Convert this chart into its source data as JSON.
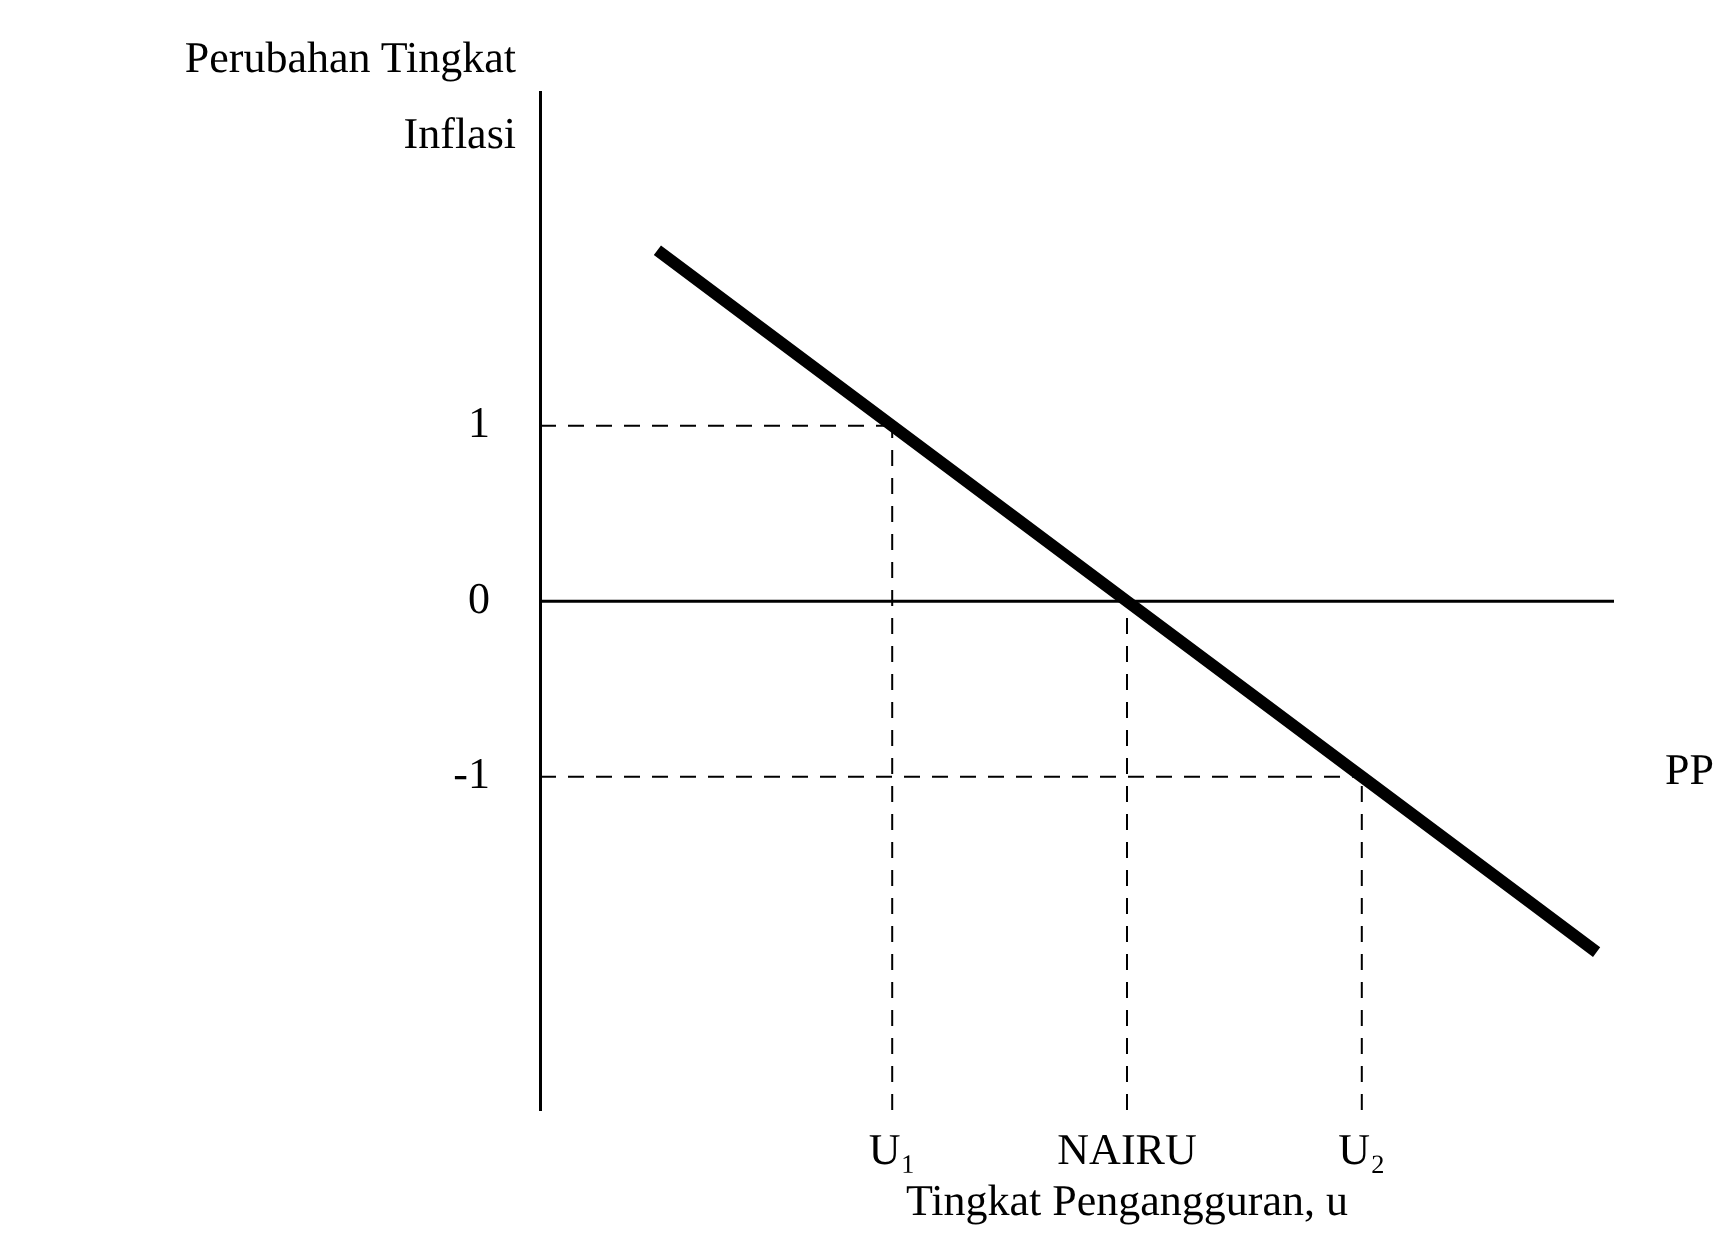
{
  "chart_data": {
    "type": "line",
    "xlabel": "Tingkat Pengangguran, u",
    "ylabel": "Perubahan Tingkat Inflasi",
    "categories": [
      null,
      "U₁",
      "NAIRU",
      "U₂",
      null
    ],
    "series": [
      {
        "color": "#000000",
        "values": [
          2,
          1,
          0,
          -1,
          -2
        ]
      },
      {
        "type": "line",
        "color": "#000000",
        "line_style": "dashed",
        "x": [
          "U₁",
          "U₁"
        ],
        "values": [
          -2.9,
          1
        ]
      },
      {
        "type": "line",
        "color": "#000000",
        "line_style": "dashed",
        "x": [
          "NAIRU",
          "NAIRU"
        ],
        "values": [
          -2.9,
          0
        ]
      },
      {
        "type": "line",
        "color": "#000000",
        "line_style": "dashed",
        "x": [
          "U₂",
          "U₂"
        ],
        "values": [
          -2.9,
          -1
        ]
      }
    ],
    "ylim": [
      -2.9,
      2.9
    ],
    "yticks": [
      -1,
      0,
      1
    ],
    "ref_lines": [
      {
        "axis": "y",
        "value": 0,
        "color": "#000000",
        "line_style": "solid"
      },
      {
        "axis": "y",
        "value": 1,
        "color": "#000000",
        "line_style": "dashed"
      },
      {
        "axis": "y",
        "value": -1,
        "color": "#000000",
        "line_style": "dashed"
      }
    ],
    "annotations": [
      "PP"
    ],
    "grid": false,
    "legend": false,
    "marker": "none",
    "line_style": "solid"
  }
}
